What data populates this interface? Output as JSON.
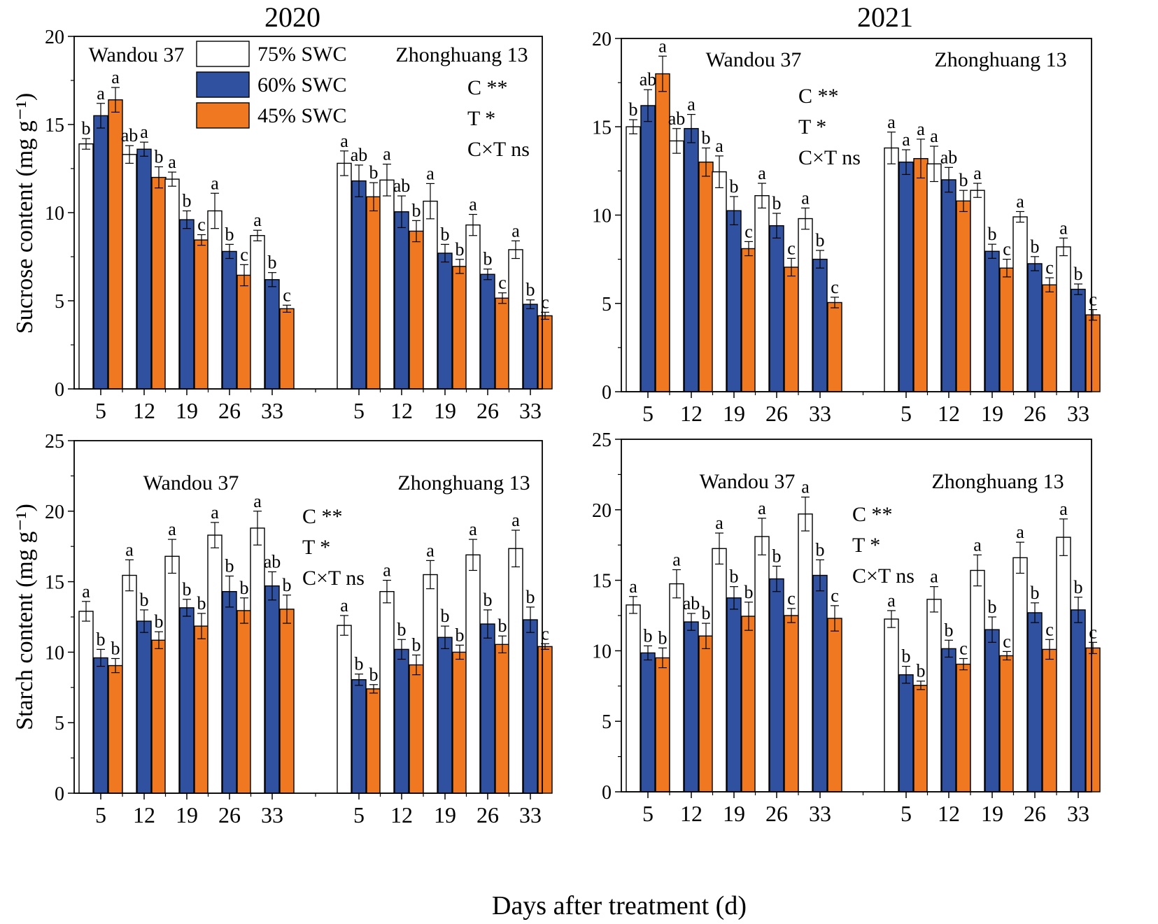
{
  "figure": {
    "xlabel": "Days after treatment (d)",
    "colors": {
      "swc75": "#ffffff",
      "swc60": "#3050a0",
      "swc45": "#f07820",
      "axis": "#000000"
    }
  },
  "chart_data": [
    {
      "type": "bar",
      "id": "sucrose-2020",
      "title": "2020",
      "ylabel": "Sucrose content (mg g⁻¹)",
      "ylim": [
        0,
        20
      ],
      "yticks": [
        0,
        5,
        10,
        15,
        20
      ],
      "cultivars": [
        "Wandou 37",
        "Zhonghuang 13"
      ],
      "categories": [
        "5",
        "12",
        "19",
        "26",
        "33"
      ],
      "legend": [
        "75% SWC",
        "60% SWC",
        "45% SWC"
      ],
      "stats": [
        "C **",
        "T *",
        "C×T ns"
      ],
      "series": [
        {
          "name": "75% SWC",
          "groups": [
            {
              "values": [
                13.9,
                13.3,
                11.9,
                10.1,
                8.7
              ],
              "errors": [
                0.3,
                0.5,
                0.4,
                1.0,
                0.3
              ],
              "letters": [
                "b",
                "ab",
                "a",
                "a",
                "a"
              ]
            },
            {
              "values": [
                12.8,
                11.85,
                10.65,
                9.3,
                7.9
              ],
              "errors": [
                0.7,
                0.9,
                1.0,
                0.6,
                0.5
              ],
              "letters": [
                "a",
                "a",
                "a",
                "a",
                "a"
              ]
            }
          ]
        },
        {
          "name": "60% SWC",
          "groups": [
            {
              "values": [
                15.5,
                13.6,
                9.6,
                7.8,
                6.2
              ],
              "errors": [
                0.7,
                0.4,
                0.5,
                0.4,
                0.4
              ],
              "letters": [
                "a",
                "a",
                "b",
                "b",
                "b"
              ]
            },
            {
              "values": [
                11.8,
                10.05,
                7.7,
                6.5,
                4.8
              ],
              "errors": [
                0.9,
                0.9,
                0.5,
                0.3,
                0.25
              ],
              "letters": [
                "ab",
                "ab",
                "b",
                "b",
                "b"
              ]
            }
          ]
        },
        {
          "name": "45% SWC",
          "groups": [
            {
              "values": [
                16.4,
                12.0,
                8.45,
                6.45,
                4.55
              ],
              "errors": [
                0.7,
                0.6,
                0.3,
                0.6,
                0.2
              ],
              "letters": [
                "a",
                "b",
                "c",
                "c",
                "c"
              ]
            },
            {
              "values": [
                10.9,
                8.95,
                6.95,
                5.15,
                4.15
              ],
              "errors": [
                0.8,
                0.6,
                0.4,
                0.3,
                0.2
              ],
              "letters": [
                "b",
                "b",
                "b",
                "c",
                "c"
              ]
            }
          ]
        }
      ]
    },
    {
      "type": "bar",
      "id": "sucrose-2021",
      "title": "2021",
      "ylabel": "",
      "ylim": [
        0,
        20
      ],
      "yticks": [
        0,
        5,
        10,
        15,
        20
      ],
      "cultivars": [
        "Wandou 37",
        "Zhonghuang 13"
      ],
      "categories": [
        "5",
        "12",
        "19",
        "26",
        "33"
      ],
      "stats": [
        "C **",
        "T *",
        "C×T ns"
      ],
      "series": [
        {
          "name": "75% SWC",
          "groups": [
            {
              "values": [
                15.0,
                14.2,
                12.45,
                11.1,
                9.8
              ],
              "errors": [
                0.4,
                0.7,
                0.9,
                0.7,
                0.6
              ],
              "letters": [
                "b",
                "ab",
                "a",
                "a",
                "a"
              ]
            },
            {
              "values": [
                13.8,
                12.9,
                11.4,
                9.9,
                8.2
              ],
              "errors": [
                0.9,
                1.0,
                0.4,
                0.3,
                0.5
              ],
              "letters": [
                "a",
                "a",
                "a",
                "a",
                "a"
              ]
            }
          ]
        },
        {
          "name": "60% SWC",
          "groups": [
            {
              "values": [
                16.2,
                14.9,
                10.25,
                9.4,
                7.5
              ],
              "errors": [
                0.9,
                0.8,
                0.8,
                0.7,
                0.5
              ],
              "letters": [
                "ab",
                "a",
                "b",
                "b",
                "b"
              ]
            },
            {
              "values": [
                13.0,
                12.0,
                7.95,
                7.25,
                5.8
              ],
              "errors": [
                0.7,
                0.7,
                0.4,
                0.4,
                0.3
              ],
              "letters": [
                "a",
                "ab",
                "b",
                "b",
                "b"
              ]
            }
          ]
        },
        {
          "name": "45% SWC",
          "groups": [
            {
              "values": [
                18.0,
                13.0,
                8.1,
                7.05,
                5.05
              ],
              "errors": [
                1.0,
                0.8,
                0.4,
                0.5,
                0.3
              ],
              "letters": [
                "a",
                "b",
                "c",
                "c",
                "c"
              ]
            },
            {
              "values": [
                13.2,
                10.8,
                7.0,
                6.05,
                4.35
              ],
              "errors": [
                1.1,
                0.6,
                0.5,
                0.4,
                0.3
              ],
              "letters": [
                "a",
                "b",
                "c",
                "c",
                "c"
              ]
            }
          ]
        }
      ]
    },
    {
      "type": "bar",
      "id": "starch-2020",
      "title": "",
      "ylabel": "Starch content (mg g⁻¹)",
      "ylim": [
        0,
        25
      ],
      "yticks": [
        0,
        5,
        10,
        15,
        20,
        25
      ],
      "cultivars": [
        "Wandou 37",
        "Zhonghuang 13"
      ],
      "categories": [
        "5",
        "12",
        "19",
        "26",
        "33"
      ],
      "stats": [
        "C **",
        "T *",
        "C×T ns"
      ],
      "series": [
        {
          "name": "75% SWC",
          "groups": [
            {
              "values": [
                12.9,
                15.45,
                16.8,
                18.3,
                18.8
              ],
              "errors": [
                0.7,
                1.1,
                1.2,
                0.9,
                1.2
              ],
              "letters": [
                "a",
                "a",
                "a",
                "a",
                "a"
              ]
            },
            {
              "values": [
                11.9,
                14.3,
                15.5,
                16.9,
                17.35
              ],
              "errors": [
                0.7,
                0.8,
                1.0,
                1.1,
                1.3
              ],
              "letters": [
                "a",
                "a",
                "a",
                "a",
                "a"
              ]
            }
          ]
        },
        {
          "name": "60% SWC",
          "groups": [
            {
              "values": [
                9.6,
                12.2,
                13.15,
                14.3,
                14.7
              ],
              "errors": [
                0.6,
                0.8,
                0.6,
                1.1,
                1.0
              ],
              "letters": [
                "b",
                "b",
                "b",
                "b",
                "ab"
              ]
            },
            {
              "values": [
                8.05,
                10.2,
                11.05,
                12.0,
                12.3
              ],
              "errors": [
                0.4,
                0.7,
                0.8,
                1.0,
                0.9
              ],
              "letters": [
                "b",
                "b",
                "b",
                "b",
                "b"
              ]
            }
          ]
        },
        {
          "name": "45% SWC",
          "groups": [
            {
              "values": [
                9.05,
                10.85,
                11.85,
                12.95,
                13.05
              ],
              "errors": [
                0.5,
                0.6,
                0.9,
                0.9,
                1.0
              ],
              "letters": [
                "b",
                "b",
                "b",
                "b",
                "b"
              ]
            },
            {
              "values": [
                7.4,
                9.1,
                10.0,
                10.55,
                10.4
              ],
              "errors": [
                0.3,
                0.7,
                0.5,
                0.6,
                0.2
              ],
              "letters": [
                "b",
                "b",
                "b",
                "b",
                "c"
              ]
            }
          ]
        }
      ]
    },
    {
      "type": "bar",
      "id": "starch-2021",
      "title": "",
      "ylabel": "",
      "ylim": [
        0,
        25
      ],
      "yticks": [
        0,
        5,
        10,
        15,
        20,
        25
      ],
      "cultivars": [
        "Wandou 37",
        "Zhonghuang 13"
      ],
      "categories": [
        "5",
        "12",
        "19",
        "26",
        "33"
      ],
      "stats": [
        "C **",
        "T *",
        "C×T ns"
      ],
      "series": [
        {
          "name": "75% SWC",
          "groups": [
            {
              "values": [
                13.25,
                14.75,
                17.25,
                18.1,
                19.7
              ],
              "errors": [
                0.6,
                1.0,
                1.1,
                1.3,
                1.2
              ],
              "letters": [
                "a",
                "a",
                "a",
                "a",
                "a"
              ]
            },
            {
              "values": [
                12.25,
                13.65,
                15.7,
                16.6,
                18.05
              ],
              "errors": [
                0.6,
                0.9,
                1.1,
                1.1,
                1.3
              ],
              "letters": [
                "a",
                "a",
                "a",
                "a",
                "a"
              ]
            }
          ]
        },
        {
          "name": "60% SWC",
          "groups": [
            {
              "values": [
                9.85,
                12.05,
                13.75,
                15.1,
                15.35
              ],
              "errors": [
                0.5,
                0.6,
                0.8,
                0.9,
                1.1
              ],
              "letters": [
                "b",
                "ab",
                "b",
                "b",
                "b"
              ]
            },
            {
              "values": [
                8.3,
                10.15,
                11.5,
                12.7,
                12.9
              ],
              "errors": [
                0.6,
                0.6,
                0.9,
                0.7,
                0.9
              ],
              "letters": [
                "b",
                "b",
                "b",
                "b",
                "b"
              ]
            }
          ]
        },
        {
          "name": "45% SWC",
          "groups": [
            {
              "values": [
                9.5,
                11.05,
                12.45,
                12.5,
                12.3
              ],
              "errors": [
                0.7,
                0.9,
                1.0,
                0.5,
                0.9
              ],
              "letters": [
                "b",
                "b",
                "b",
                "c",
                "c"
              ]
            },
            {
              "values": [
                7.55,
                9.05,
                9.65,
                10.1,
                10.2
              ],
              "errors": [
                0.3,
                0.4,
                0.3,
                0.7,
                0.4
              ],
              "letters": [
                "b",
                "c",
                "c",
                "c",
                "c"
              ]
            }
          ]
        }
      ]
    }
  ]
}
